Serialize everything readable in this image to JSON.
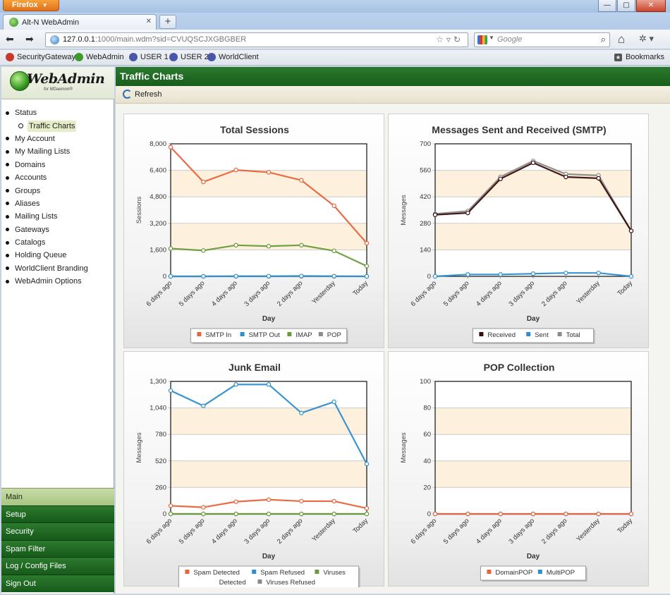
{
  "browser": {
    "firefox_button": "Firefox",
    "tab_title": "Alt-N WebAdmin",
    "url_host": "127.0.0.1",
    "url_rest": ":1000/main.wdm?sid=CVUQSCJXGBGBER",
    "search_placeholder": "Google",
    "bookmarks": [
      "SecurityGateway",
      "WebAdmin",
      "USER 1",
      "USER 2",
      "WorldClient"
    ],
    "bookmarks_menu": "Bookmarks"
  },
  "sidebar": {
    "logo_text": "WebAdmin",
    "logo_sub": "for MDaemon®",
    "tree": [
      {
        "label": "Status",
        "level": 0
      },
      {
        "label": "Traffic Charts",
        "level": 1,
        "selected": true
      },
      {
        "label": "My Account",
        "level": 0
      },
      {
        "label": "My Mailing Lists",
        "level": 0
      },
      {
        "label": "Domains",
        "level": 0
      },
      {
        "label": "Accounts",
        "level": 0
      },
      {
        "label": "Groups",
        "level": 0
      },
      {
        "label": "Aliases",
        "level": 0
      },
      {
        "label": "Mailing Lists",
        "level": 0
      },
      {
        "label": "Gateways",
        "level": 0
      },
      {
        "label": "Catalogs",
        "level": 0
      },
      {
        "label": "Holding Queue",
        "level": 0
      },
      {
        "label": "WorldClient Branding",
        "level": 0
      },
      {
        "label": "WebAdmin Options",
        "level": 0
      }
    ],
    "bottom_nav": [
      {
        "label": "Main",
        "active": true
      },
      {
        "label": "Setup"
      },
      {
        "label": "Security"
      },
      {
        "label": "Spam Filter"
      },
      {
        "label": "Log / Config Files"
      },
      {
        "label": "Sign Out"
      }
    ]
  },
  "main": {
    "title": "Traffic Charts",
    "refresh_label": "Refresh"
  },
  "colors": {
    "orange": "#e8643c",
    "blue": "#2e8fd0",
    "green": "#6a9a3a",
    "gray": "#8a8a8a",
    "dark": "#3a0d0d",
    "band": "#fdf0dc"
  },
  "chart_data": [
    {
      "type": "line",
      "title": "Total Sessions",
      "xlabel": "Day",
      "ylabel": "Sessions",
      "categories": [
        "6 days ago",
        "5 days ago",
        "4 days ago",
        "3 days ago",
        "2 days ago",
        "Yesterday",
        "Today"
      ],
      "yticks": [
        "0",
        "1,600",
        "3,200",
        "4,800",
        "6,400",
        "8,000"
      ],
      "ylim": [
        0,
        8000
      ],
      "series": [
        {
          "name": "SMTP In",
          "color": "#e8643c",
          "values": [
            7800,
            5700,
            6420,
            6280,
            5800,
            4260,
            2000
          ]
        },
        {
          "name": "SMTP Out",
          "color": "#2e8fd0",
          "values": [
            0,
            0,
            10,
            10,
            20,
            10,
            0
          ]
        },
        {
          "name": "IMAP",
          "color": "#6a9a3a",
          "values": [
            1680,
            1560,
            1880,
            1820,
            1880,
            1540,
            620
          ]
        },
        {
          "name": "POP",
          "color": "#8a8a8a",
          "values": [
            0,
            0,
            0,
            0,
            0,
            0,
            0
          ]
        }
      ],
      "legend_rows": [
        [
          "SMTP In",
          "SMTP Out",
          "IMAP",
          "POP"
        ]
      ]
    },
    {
      "type": "line",
      "title": "Messages Sent and Received (SMTP)",
      "xlabel": "Day",
      "ylabel": "Messages",
      "categories": [
        "6 days ago",
        "5 days ago",
        "4 days ago",
        "3 days ago",
        "2 days ago",
        "Yesterday",
        "Today"
      ],
      "yticks": [
        "0",
        "140",
        "280",
        "420",
        "560",
        "700"
      ],
      "ylim": [
        0,
        700
      ],
      "series": [
        {
          "name": "Received",
          "color": "#3a0d0d",
          "values": [
            325,
            335,
            515,
            600,
            525,
            518,
            240
          ]
        },
        {
          "name": "Sent",
          "color": "#2e8fd0",
          "values": [
            0,
            10,
            10,
            14,
            18,
            18,
            0
          ]
        },
        {
          "name": "Total",
          "color": "#8a8a8a",
          "values": [
            330,
            345,
            525,
            610,
            540,
            533,
            240
          ]
        }
      ],
      "legend_rows": [
        [
          "Received",
          "Sent",
          "Total"
        ]
      ]
    },
    {
      "type": "line",
      "title": "Junk Email",
      "xlabel": "Day",
      "ylabel": "Messages",
      "categories": [
        "6 days ago",
        "5 days ago",
        "4 days ago",
        "3 days ago",
        "2 days ago",
        "Yesterday",
        "Today"
      ],
      "yticks": [
        "0",
        "260",
        "520",
        "780",
        "1,040",
        "1,300"
      ],
      "ylim": [
        0,
        1300
      ],
      "series": [
        {
          "name": "Spam Detected",
          "color": "#e8643c",
          "values": [
            80,
            65,
            120,
            140,
            125,
            125,
            55
          ]
        },
        {
          "name": "Spam Refused",
          "color": "#2e8fd0",
          "values": [
            1210,
            1060,
            1270,
            1270,
            990,
            1100,
            490
          ]
        },
        {
          "name": "Viruses Detected",
          "color": "#6a9a3a",
          "values": [
            0,
            0,
            0,
            0,
            0,
            0,
            0
          ]
        },
        {
          "name": "Viruses Refused",
          "color": "#8a8a8a",
          "values": [
            0,
            0,
            0,
            0,
            0,
            0,
            0
          ]
        }
      ],
      "legend_rows": [
        [
          "Spam Detected",
          "Spam Refused",
          "Viruses"
        ],
        [
          "Detected",
          "Viruses Refused"
        ]
      ]
    },
    {
      "type": "line",
      "title": "POP Collection",
      "xlabel": "Day",
      "ylabel": "Messages",
      "categories": [
        "6 days ago",
        "5 days ago",
        "4 days ago",
        "3 days ago",
        "2 days ago",
        "Yesterday",
        "Today"
      ],
      "yticks": [
        "0",
        "20",
        "40",
        "60",
        "80",
        "100"
      ],
      "ylim": [
        0,
        100
      ],
      "series": [
        {
          "name": "DomainPOP",
          "color": "#e8643c",
          "values": [
            0,
            0,
            0,
            0,
            0,
            0,
            0
          ]
        },
        {
          "name": "MultiPOP",
          "color": "#2e8fd0",
          "values": [
            0,
            0,
            0,
            0,
            0,
            0,
            0
          ]
        }
      ],
      "legend_rows": [
        [
          "DomainPOP",
          "MultiPOP"
        ]
      ]
    }
  ]
}
